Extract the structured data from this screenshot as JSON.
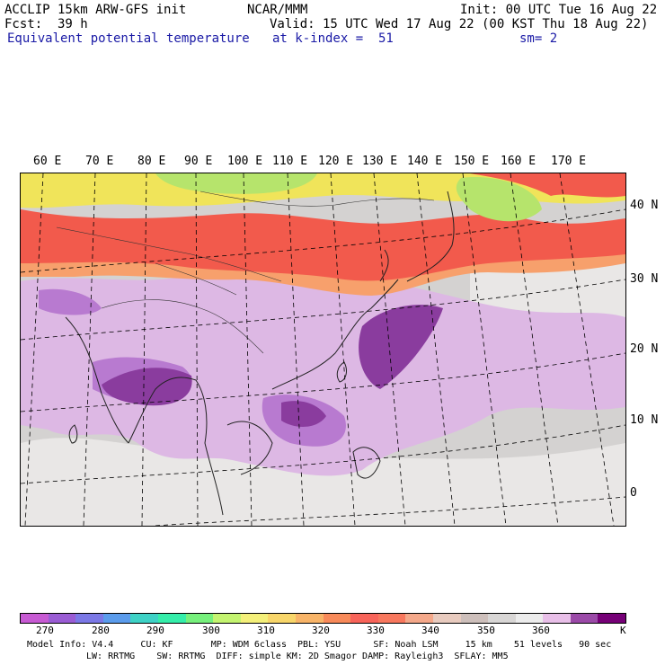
{
  "header": {
    "title_left": "ACCLIP 15km ARW-GFS init",
    "center": "NCAR/MMM",
    "init": "Init: 00 UTC Tue 16 Aug 22",
    "fcst_label": "Fcst:",
    "fcst_value": "39 h",
    "valid": "Valid: 15 UTC Wed 17 Aug 22 (00 KST Thu 18 Aug 22)",
    "field": "Equivalent potential temperature",
    "level": "at k-index =  51",
    "smooth": "sm= 2"
  },
  "map": {
    "lon_labels": [
      "60 E",
      "70 E",
      "80 E",
      "90 E",
      "100 E",
      "110 E",
      "120 E",
      "130 E",
      "140 E",
      "150 E",
      "160 E",
      "170 E"
    ],
    "lat_labels": [
      "40 N",
      "30 N",
      "20 N",
      "10 N",
      "0"
    ],
    "colors": {
      "north_yellow": "#f0e45a",
      "north_green": "#b6e46c",
      "band_orange": "#f7a06c",
      "band_red": "#f25a4c",
      "tropic_light": "#ddb8e4",
      "tropic_mid": "#b87ad0",
      "tropic_dark": "#8a3c9e",
      "gray": "#cfcccb",
      "gray_light": "#e9e7e6"
    }
  },
  "colorbar": {
    "unit": "K",
    "ticks": [
      "270",
      "280",
      "290",
      "300",
      "310",
      "320",
      "330",
      "340",
      "350",
      "360"
    ],
    "colors": [
      "#c75ad3",
      "#9a5cd4",
      "#7b78e6",
      "#5b9cec",
      "#3ed2c6",
      "#35eeaa",
      "#76f07c",
      "#c4f470",
      "#f4f07a",
      "#f8d66a",
      "#f8b468",
      "#f88a5a",
      "#f8645a",
      "#f8785e",
      "#f4a88a",
      "#e8cbbf",
      "#cdbfbb",
      "#d8d6d5",
      "#ececec",
      "#e8bfe8",
      "#9b4aa8",
      "#760077"
    ]
  },
  "footer": {
    "line1": "Model Info: V4.4     CU: KF       MP: WDM 6class  PBL: YSU      SF: Noah LSM     15 km    51 levels   90 sec",
    "line2": "LW: RRTMG    SW: RRTMG  DIFF: simple KM: 2D Smagor DAMP: Rayleigh3  SFLAY: MM5"
  }
}
